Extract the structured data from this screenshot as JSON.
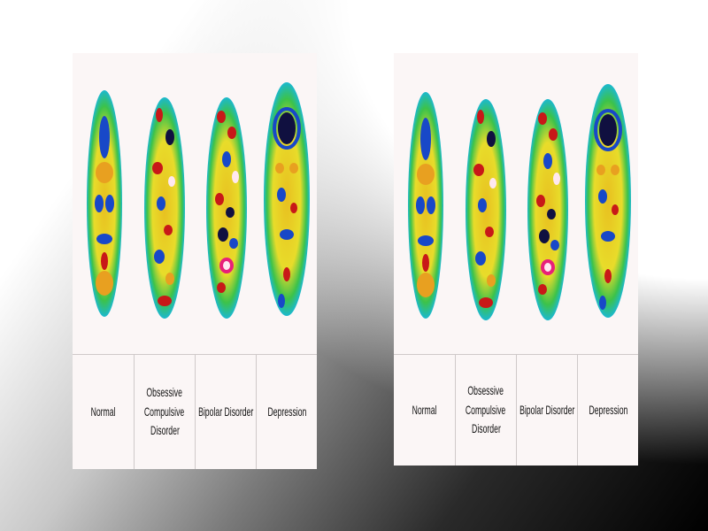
{
  "figure": {
    "conditions": [
      {
        "id": "normal",
        "label_lines": [
          "Normal"
        ]
      },
      {
        "id": "ocd",
        "label_lines": [
          "Obsessive",
          "Compulsive",
          "Disorder"
        ]
      },
      {
        "id": "bipolar",
        "label_lines": [
          "Bipolar Disorder"
        ]
      },
      {
        "id": "depression",
        "label_lines": [
          "Depression"
        ]
      }
    ]
  },
  "colors": {
    "scan_outer": "#19b8d8",
    "scan_green": "#3cc24a",
    "scan_yellow": "#e8e02a",
    "scan_orange": "#e8a020",
    "scan_red": "#c81818",
    "scan_blue": "#1848c8",
    "scan_dark": "#101040",
    "scan_white": "#ffe8f0"
  }
}
